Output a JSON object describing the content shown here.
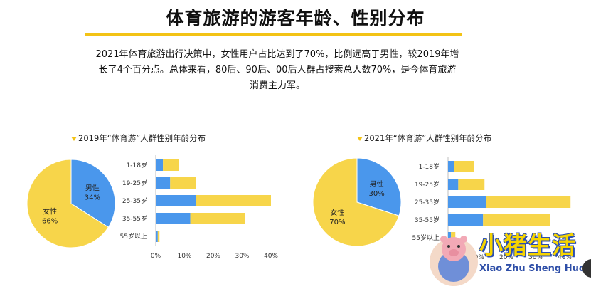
{
  "title": "体育旅游的游客年龄、性别分布",
  "summary": {
    "line1": "2021年体育旅游出行决策中，女性用户占比达到了70%，比例远高于男性，较2019年增",
    "line2": "长了4个百分点。总体来看，80后、90后、00后人群占搜索总人数70%，是今体育旅游",
    "line3": "消费主力军。"
  },
  "colors": {
    "accent": "#f3c316",
    "blue": "#4a97ec",
    "yellow": "#f7d54a"
  },
  "chart_data": [
    {
      "title": "2019年“体育游”人群性别年龄分布",
      "pie": {
        "type": "pie",
        "slices": [
          {
            "name": "男性",
            "value": 34,
            "label": "34%"
          },
          {
            "name": "女性",
            "value": 66,
            "label": "66%"
          }
        ]
      },
      "bar": {
        "type": "bar",
        "stacked": true,
        "orientation": "horizontal",
        "categories": [
          "1-18岁",
          "19-25岁",
          "25-35岁",
          "35-55岁",
          "55岁以上"
        ],
        "series": [
          {
            "values": [
              2.5,
              5,
              14,
              12,
              0.7
            ]
          },
          {
            "values": [
              5.5,
              9,
              26,
              19,
              0.6
            ]
          }
        ],
        "xlim": [
          0,
          40
        ],
        "xticks": [
          "0%",
          "10%",
          "20%",
          "30%",
          "40%"
        ]
      }
    },
    {
      "title": "2021年“体育游”人群性别年龄分布",
      "pie": {
        "type": "pie",
        "slices": [
          {
            "name": "男性",
            "value": 30,
            "label": "30%"
          },
          {
            "name": "女性",
            "value": 70,
            "label": "70%"
          }
        ]
      },
      "bar": {
        "type": "bar",
        "stacked": true,
        "orientation": "horizontal",
        "categories": [
          "1-18岁",
          "19-25岁",
          "25-35岁",
          "35-55岁",
          "55岁以上"
        ],
        "series": [
          {
            "values": [
              2,
              3.5,
              13,
              12,
              1
            ]
          },
          {
            "values": [
              7,
              9,
              29,
              23,
              1.5
            ]
          }
        ],
        "xlim": [
          0,
          40
        ],
        "xticks": [
          "0%",
          "10%",
          "20%",
          "30%",
          "40%"
        ]
      }
    }
  ],
  "watermark": {
    "cn": "小猪生活",
    "en": "Xiao Zhu Sheng Huo"
  }
}
